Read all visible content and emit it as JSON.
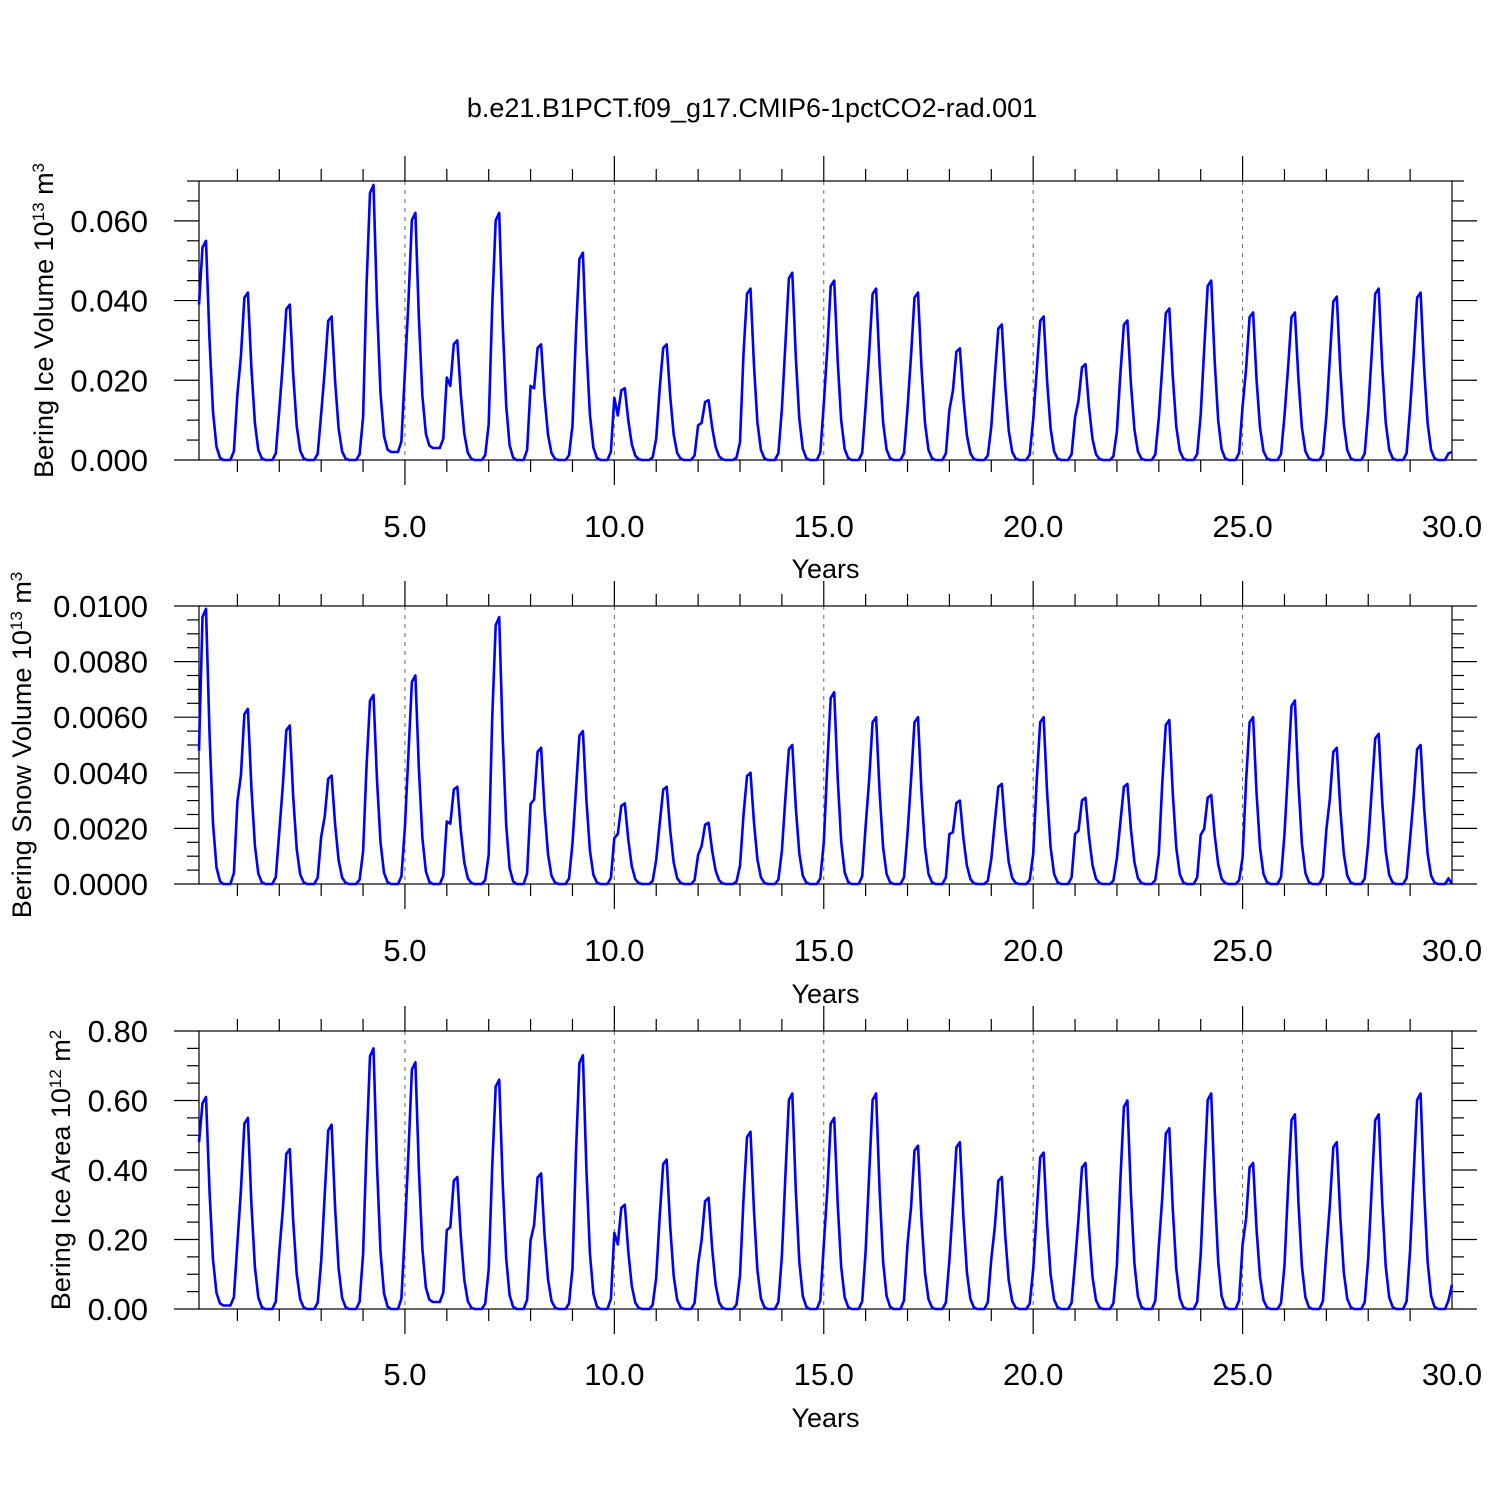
{
  "title": "b.e21.B1PCT.f09_g17.CMIP6-1pctCO2-rad.001",
  "chart_data": [
    {
      "type": "line",
      "ylabel": "Bering Ice Volume 10",
      "ylabel_sup": "13",
      "ylabel_unit": " m",
      "ylabel_unit_sup": "3",
      "xlabel": "Years",
      "xlim": [
        0.083,
        30.0
      ],
      "ylim": [
        0.0,
        0.07
      ],
      "xticks": [
        5.0,
        10.0,
        15.0,
        20.0,
        25.0,
        30.0
      ],
      "xtick_labels": [
        "5.0",
        "10.0",
        "15.0",
        "20.0",
        "25.0",
        "30.0"
      ],
      "yticks": [
        0.0,
        0.02,
        0.04,
        0.06
      ],
      "ytick_labels": [
        "0.000",
        "0.020",
        "0.040",
        "0.060"
      ],
      "grid": "vertical dashed at 5-year marks",
      "series": [
        {
          "color": "#0000ff",
          "annual_peaks": [
            0.055,
            0.042,
            0.039,
            0.036,
            0.069,
            0.062,
            0.03,
            0.062,
            0.029,
            0.052,
            0.018,
            0.029,
            0.015,
            0.043,
            0.047,
            0.045,
            0.043,
            0.042,
            0.028,
            0.034,
            0.036,
            0.024,
            0.035,
            0.038,
            0.045,
            0.037,
            0.037,
            0.041,
            0.043,
            0.042
          ],
          "annual_mins": [
            0.0,
            0.0,
            0.0,
            0.0,
            0.002,
            0.003,
            0.0,
            0.0,
            0.0,
            0.0,
            0.0,
            0.0,
            0.0,
            0.0,
            0.0,
            0.0,
            0.0,
            0.0,
            0.0,
            0.0,
            0.0,
            0.0,
            0.0,
            0.0,
            0.0,
            0.0,
            0.0,
            0.0,
            0.0,
            0.0
          ],
          "start_value": 0.039,
          "end_value": 0.002
        }
      ]
    },
    {
      "type": "line",
      "ylabel": "Bering Snow Volume 10",
      "ylabel_sup": "13",
      "ylabel_unit": " m",
      "ylabel_unit_sup": "3",
      "xlabel": "Years",
      "xlim": [
        0.083,
        30.0
      ],
      "ylim": [
        0.0,
        0.01
      ],
      "xticks": [
        5.0,
        10.0,
        15.0,
        20.0,
        25.0,
        30.0
      ],
      "xtick_labels": [
        "5.0",
        "10.0",
        "15.0",
        "20.0",
        "25.0",
        "30.0"
      ],
      "yticks": [
        0.0,
        0.002,
        0.004,
        0.006,
        0.008,
        0.01
      ],
      "ytick_labels": [
        "0.0000",
        "0.0020",
        "0.0040",
        "0.0060",
        "0.0080",
        "0.0100"
      ],
      "grid": "vertical dashed at 5-year marks",
      "series": [
        {
          "color": "#0000ff",
          "annual_peaks": [
            0.0099,
            0.0063,
            0.0057,
            0.0039,
            0.0068,
            0.0075,
            0.0035,
            0.0096,
            0.0049,
            0.0055,
            0.0029,
            0.0035,
            0.0022,
            0.004,
            0.005,
            0.0069,
            0.006,
            0.006,
            0.003,
            0.0036,
            0.006,
            0.0031,
            0.0036,
            0.0059,
            0.0032,
            0.006,
            0.0066,
            0.0049,
            0.0054,
            0.005
          ],
          "annual_mins": [
            0.0,
            0.0,
            0.0,
            0.0,
            0.0,
            0.0,
            0.0,
            0.0,
            0.0,
            0.0,
            0.0,
            0.0,
            0.0,
            0.0,
            0.0,
            0.0,
            0.0,
            0.0,
            0.0,
            0.0,
            0.0,
            0.0,
            0.0,
            0.0,
            0.0,
            0.0,
            0.0,
            0.0,
            0.0,
            0.0
          ],
          "start_value": 0.0048,
          "end_value": 0.0
        }
      ]
    },
    {
      "type": "line",
      "ylabel": "Bering Ice Area 10",
      "ylabel_sup": "12",
      "ylabel_unit": " m",
      "ylabel_unit_sup": "2",
      "xlabel": "Years",
      "xlim": [
        0.083,
        30.0
      ],
      "ylim": [
        0.0,
        0.8
      ],
      "xticks": [
        5.0,
        10.0,
        15.0,
        20.0,
        25.0,
        30.0
      ],
      "xtick_labels": [
        "5.0",
        "10.0",
        "15.0",
        "20.0",
        "25.0",
        "30.0"
      ],
      "yticks": [
        0.0,
        0.2,
        0.4,
        0.6,
        0.8
      ],
      "ytick_labels": [
        "0.00",
        "0.20",
        "0.40",
        "0.60",
        "0.80"
      ],
      "grid": "vertical dashed at 5-year marks",
      "series": [
        {
          "color": "#0000ff",
          "annual_peaks": [
            0.61,
            0.55,
            0.46,
            0.53,
            0.75,
            0.71,
            0.38,
            0.66,
            0.39,
            0.73,
            0.3,
            0.43,
            0.32,
            0.51,
            0.62,
            0.55,
            0.62,
            0.47,
            0.48,
            0.38,
            0.45,
            0.42,
            0.6,
            0.52,
            0.62,
            0.42,
            0.56,
            0.48,
            0.56,
            0.62
          ],
          "annual_mins": [
            0.01,
            0.0,
            0.0,
            0.0,
            0.0,
            0.02,
            0.0,
            0.0,
            0.0,
            0.0,
            0.0,
            0.0,
            0.0,
            0.0,
            0.0,
            0.0,
            0.0,
            0.0,
            0.0,
            0.0,
            0.0,
            0.0,
            0.0,
            0.0,
            0.0,
            0.0,
            0.0,
            0.0,
            0.0,
            0.0
          ],
          "start_value": 0.48,
          "end_value": 0.07
        }
      ]
    }
  ]
}
